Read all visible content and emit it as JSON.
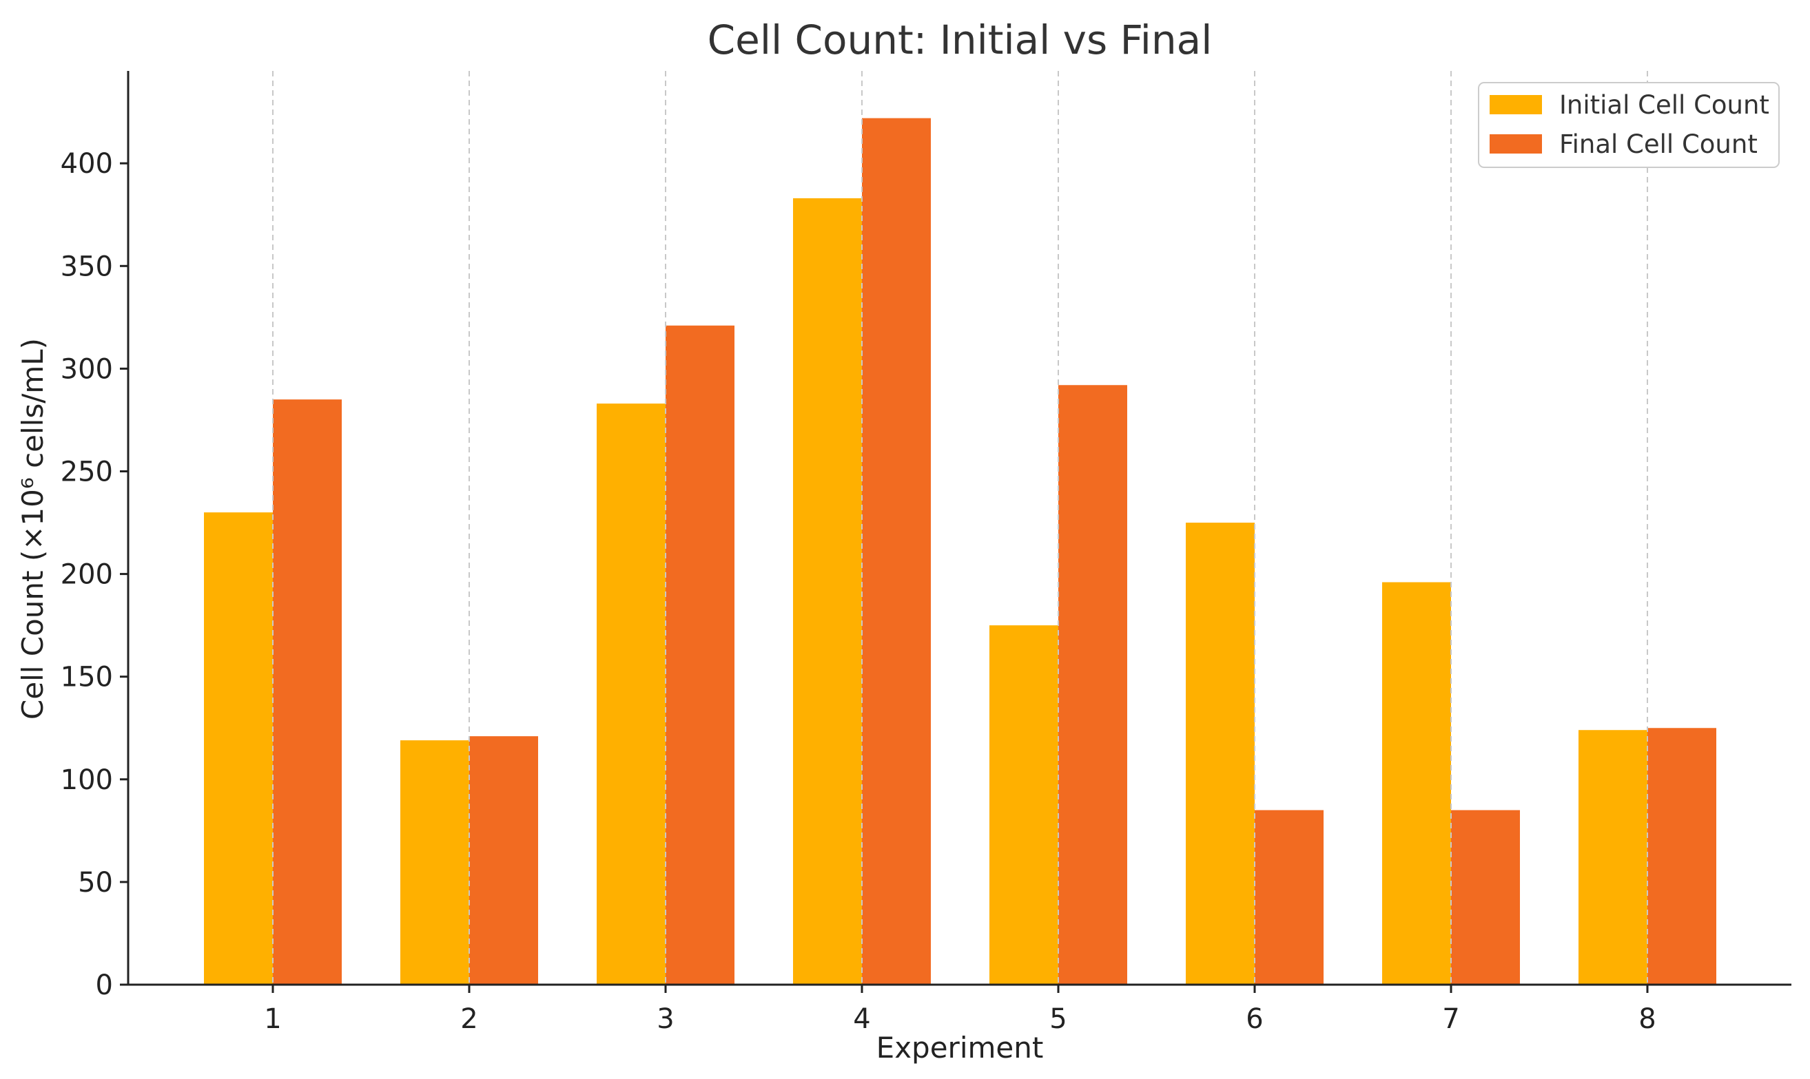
{
  "chart_data": {
    "type": "bar",
    "title": "Cell Count: Initial vs Final",
    "xlabel": "Experiment",
    "ylabel": "Cell Count (×10⁶ cells/mL)",
    "categories": [
      "1",
      "2",
      "3",
      "4",
      "5",
      "6",
      "7",
      "8"
    ],
    "series": [
      {
        "name": "Initial Cell Count",
        "color": "#FFB000",
        "values": [
          230,
          119,
          283,
          383,
          175,
          225,
          196,
          124
        ]
      },
      {
        "name": "Final Cell Count",
        "color": "#F26B21",
        "values": [
          285,
          121,
          321,
          422,
          292,
          85,
          85,
          125
        ]
      }
    ],
    "ylim": [
      0,
      445
    ],
    "yticks": [
      0,
      50,
      100,
      150,
      200,
      250,
      300,
      350,
      400
    ],
    "grid": "x-dashed",
    "legend_position": "top-right"
  }
}
